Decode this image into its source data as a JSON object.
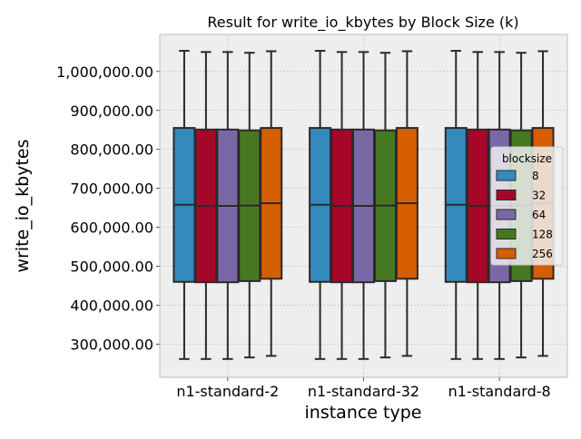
{
  "chart_data": {
    "type": "box",
    "title": "Result for write_io_kbytes by Block Size (k)",
    "xlabel": "instance type",
    "ylabel": "write_io_kbytes",
    "categories": [
      "n1-standard-2",
      "n1-standard-32",
      "n1-standard-8"
    ],
    "ylim": [
      215000,
      1095000
    ],
    "yticks": [
      300000,
      400000,
      500000,
      600000,
      700000,
      800000,
      900000,
      1000000
    ],
    "ytick_labels": [
      "300,000.00",
      "400,000.00",
      "500,000.00",
      "600,000.00",
      "700,000.00",
      "800,000.00",
      "900,000.00",
      "1,000,000.00"
    ],
    "grid": true,
    "legend": {
      "title": "blocksize",
      "placement": "right"
    },
    "series": [
      {
        "name": "8",
        "color": "#348abd",
        "boxes": [
          {
            "min": 262000,
            "q1": 460000,
            "median": 658000,
            "q3": 855000,
            "max": 1053000
          },
          {
            "min": 262000,
            "q1": 460000,
            "median": 658000,
            "q3": 855000,
            "max": 1053000
          },
          {
            "min": 262000,
            "q1": 460000,
            "median": 658000,
            "q3": 855000,
            "max": 1053000
          }
        ]
      },
      {
        "name": "32",
        "color": "#a60628",
        "boxes": [
          {
            "min": 262000,
            "q1": 459000,
            "median": 655000,
            "q3": 851000,
            "max": 1050000
          },
          {
            "min": 262000,
            "q1": 459000,
            "median": 655000,
            "q3": 851000,
            "max": 1050000
          },
          {
            "min": 262000,
            "q1": 459000,
            "median": 655000,
            "q3": 851000,
            "max": 1050000
          }
        ]
      },
      {
        "name": "64",
        "color": "#7a68a6",
        "boxes": [
          {
            "min": 262000,
            "q1": 459000,
            "median": 655000,
            "q3": 851000,
            "max": 1050000
          },
          {
            "min": 262000,
            "q1": 459000,
            "median": 655000,
            "q3": 851000,
            "max": 1050000
          },
          {
            "min": 262000,
            "q1": 459000,
            "median": 655000,
            "q3": 851000,
            "max": 1050000
          }
        ]
      },
      {
        "name": "128",
        "color": "#467821",
        "boxes": [
          {
            "min": 266000,
            "q1": 462000,
            "median": 656000,
            "q3": 849000,
            "max": 1048000
          },
          {
            "min": 266000,
            "q1": 462000,
            "median": 656000,
            "q3": 849000,
            "max": 1048000
          },
          {
            "min": 266000,
            "q1": 462000,
            "median": 656000,
            "q3": 849000,
            "max": 1048000
          }
        ]
      },
      {
        "name": "256",
        "color": "#d55e00",
        "boxes": [
          {
            "min": 270000,
            "q1": 468000,
            "median": 662000,
            "q3": 855000,
            "max": 1052000
          },
          {
            "min": 270000,
            "q1": 468000,
            "median": 662000,
            "q3": 855000,
            "max": 1052000
          },
          {
            "min": 270000,
            "q1": 468000,
            "median": 662000,
            "q3": 855000,
            "max": 1052000
          }
        ]
      }
    ]
  }
}
